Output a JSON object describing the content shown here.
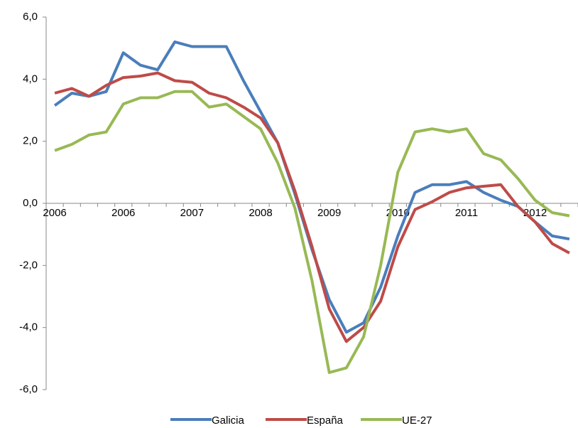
{
  "chart_data": {
    "type": "line",
    "categories": [
      "2006",
      null,
      null,
      null,
      "2006",
      null,
      null,
      null,
      "2007",
      null,
      null,
      null,
      "2008",
      null,
      null,
      null,
      "2009",
      null,
      null,
      null,
      "2010",
      null,
      null,
      null,
      "2011",
      null,
      null,
      null,
      "2012",
      null,
      null
    ],
    "series": [
      {
        "name": "Galicia",
        "color": "#4a7ebb",
        "values": [
          3.15,
          3.55,
          3.45,
          3.6,
          4.85,
          4.45,
          4.3,
          5.2,
          5.05,
          5.05,
          5.05,
          3.95,
          2.95,
          1.95,
          0.3,
          -1.5,
          -3.1,
          -4.15,
          -3.85,
          -2.7,
          -1.05,
          0.35,
          0.6,
          0.6,
          0.7,
          0.35,
          0.1,
          -0.1,
          -0.6,
          -1.05,
          -1.15
        ]
      },
      {
        "name": "España",
        "color": "#be4b48",
        "values": [
          3.55,
          3.7,
          3.45,
          3.8,
          4.05,
          4.1,
          4.2,
          3.95,
          3.9,
          3.55,
          3.4,
          3.1,
          2.75,
          1.95,
          0.4,
          -1.4,
          -3.4,
          -4.45,
          -4.0,
          -3.15,
          -1.4,
          -0.2,
          0.05,
          0.35,
          0.5,
          0.55,
          0.6,
          -0.1,
          -0.6,
          -1.3,
          -1.6
        ]
      },
      {
        "name": "UE-27",
        "color": "#98b954",
        "values": [
          1.7,
          1.9,
          2.2,
          2.3,
          3.2,
          3.4,
          3.4,
          3.6,
          3.6,
          3.1,
          3.2,
          2.8,
          2.4,
          1.3,
          -0.15,
          -2.5,
          -5.45,
          -5.3,
          -4.3,
          -2.0,
          1.0,
          2.3,
          2.4,
          2.3,
          2.4,
          1.6,
          1.4,
          0.8,
          0.1,
          -0.3,
          -0.4
        ]
      }
    ],
    "ylim": [
      -6,
      6
    ],
    "yticks": [
      {
        "value": -6,
        "label": "-6,0"
      },
      {
        "value": -4,
        "label": "-4,0"
      },
      {
        "value": -2,
        "label": "-2,0"
      },
      {
        "value": 0,
        "label": "0,0"
      },
      {
        "value": 2,
        "label": "2,0"
      },
      {
        "value": 4,
        "label": "4,0"
      },
      {
        "value": 6,
        "label": "6,0"
      }
    ],
    "legend": "bottom"
  }
}
